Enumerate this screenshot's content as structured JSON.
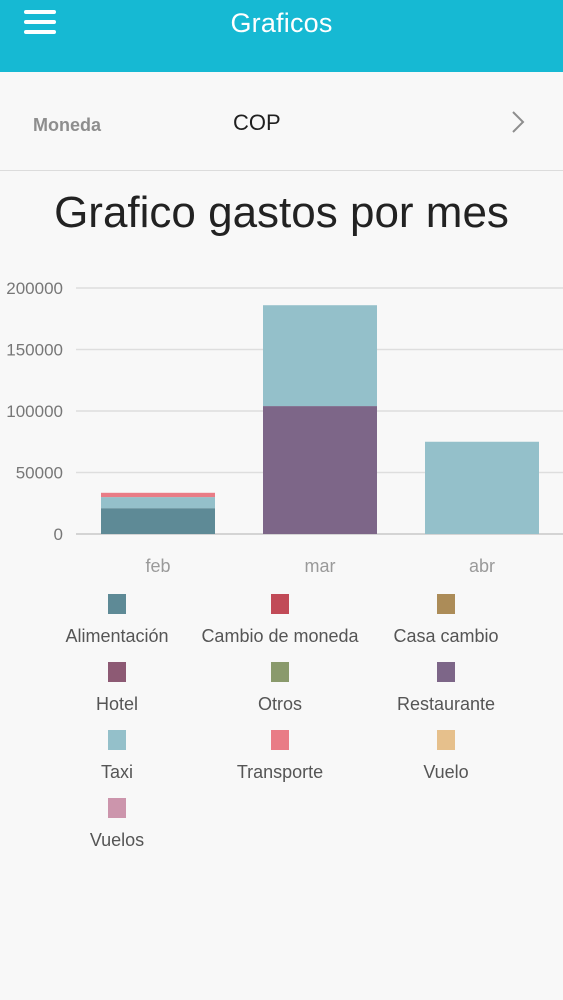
{
  "appbar": {
    "title": "Graficos",
    "menu_icon": "menu-icon"
  },
  "currency": {
    "label": "Moneda",
    "value": "COP",
    "chevron_icon": "chevron-right-icon"
  },
  "chart_data": {
    "type": "bar",
    "stacked": true,
    "title": "Grafico gastos por mes",
    "categories": [
      "feb",
      "mar",
      "abr"
    ],
    "ylim": [
      0,
      200000
    ],
    "yticks": [
      0,
      50000,
      100000,
      150000,
      200000
    ],
    "ytick_labels": [
      "0",
      "50000",
      "100000",
      "150000",
      "200000"
    ],
    "grid": true,
    "legend_position": "bottom",
    "series": [
      {
        "name": "Alimentación",
        "color": "#5e8a96",
        "values": [
          21000,
          0,
          0
        ]
      },
      {
        "name": "Cambio de moneda",
        "color": "#c14a57",
        "values": [
          0,
          0,
          0
        ]
      },
      {
        "name": "Casa cambio",
        "color": "#ac8c58",
        "values": [
          0,
          0,
          0
        ]
      },
      {
        "name": "Hotel",
        "color": "#8d5a74",
        "values": [
          0,
          0,
          0
        ]
      },
      {
        "name": "Otros",
        "color": "#8a9a6c",
        "values": [
          0,
          0,
          0
        ]
      },
      {
        "name": "Restaurante",
        "color": "#7d6688",
        "values": [
          0,
          104000,
          0
        ]
      },
      {
        "name": "Taxi",
        "color": "#94c0ca",
        "values": [
          9000,
          82000,
          75000
        ]
      },
      {
        "name": "Transporte",
        "color": "#e97c86",
        "values": [
          3500,
          0,
          0
        ]
      },
      {
        "name": "Vuelo",
        "color": "#e6c08c",
        "values": [
          0,
          0,
          0
        ]
      },
      {
        "name": "Vuelos",
        "color": "#cc95ac",
        "values": [
          0,
          0,
          0
        ]
      }
    ]
  }
}
